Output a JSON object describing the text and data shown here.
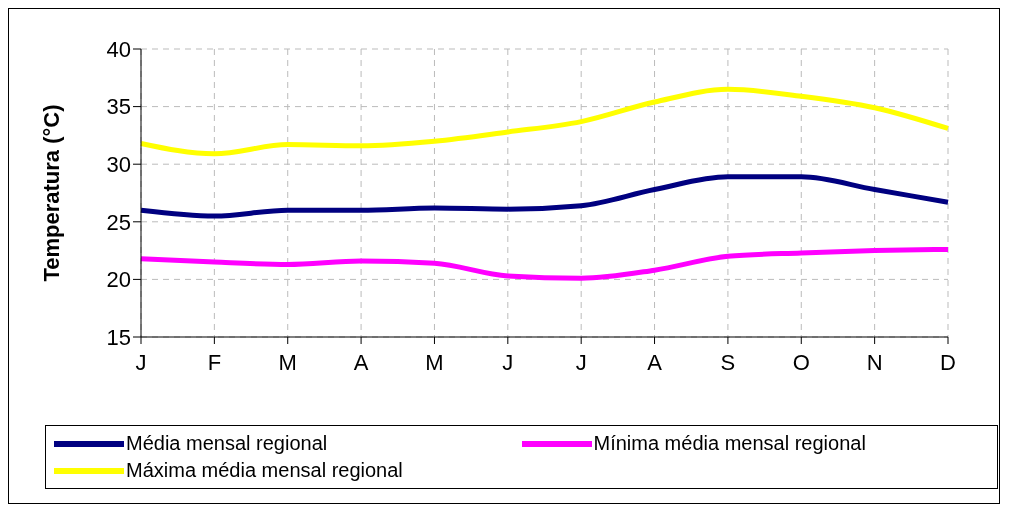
{
  "chart_data": {
    "type": "line",
    "ylabel": "Temperatura (°C)",
    "categories": [
      "J",
      "F",
      "M",
      "A",
      "M",
      "J",
      "J",
      "A",
      "S",
      "O",
      "N",
      "D"
    ],
    "series": [
      {
        "name": "Média mensal regional",
        "color": "#000080",
        "values": [
          26.0,
          25.5,
          26.0,
          26.0,
          26.2,
          26.1,
          26.4,
          27.8,
          28.9,
          28.9,
          27.8,
          26.7
        ]
      },
      {
        "name": "Mínima média mensal regional",
        "color": "#ff00ff",
        "values": [
          21.8,
          21.5,
          21.3,
          21.6,
          21.4,
          20.3,
          20.1,
          20.8,
          22.0,
          22.3,
          22.5,
          22.6
        ]
      },
      {
        "name": "Máxima média mensal regional",
        "color": "#ffff00",
        "values": [
          31.8,
          30.9,
          31.7,
          31.6,
          32.0,
          32.8,
          33.7,
          35.4,
          36.5,
          35.9,
          34.9,
          33.1
        ]
      }
    ],
    "ylim": [
      15,
      40
    ],
    "yticks": [
      15,
      20,
      25,
      30,
      35,
      40
    ],
    "grid": true,
    "legend": "bottom",
    "marker": "none",
    "line_style": "solid"
  }
}
